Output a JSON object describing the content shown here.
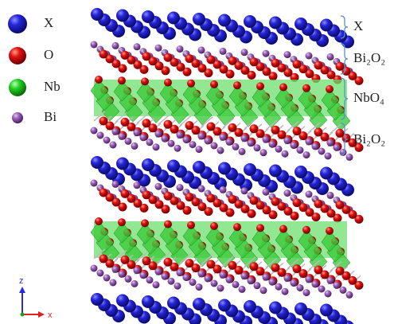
{
  "legend": [
    {
      "label": "X"
    },
    {
      "label": "O"
    },
    {
      "label": "Nb"
    },
    {
      "label": "Bi"
    }
  ],
  "layers": [
    {
      "label": "X"
    },
    {
      "label": "Bi₂O₂"
    },
    {
      "label": "NbO₄"
    },
    {
      "label": "Bi₂O₂"
    }
  ],
  "axes": {
    "z": "z",
    "x": "x"
  }
}
